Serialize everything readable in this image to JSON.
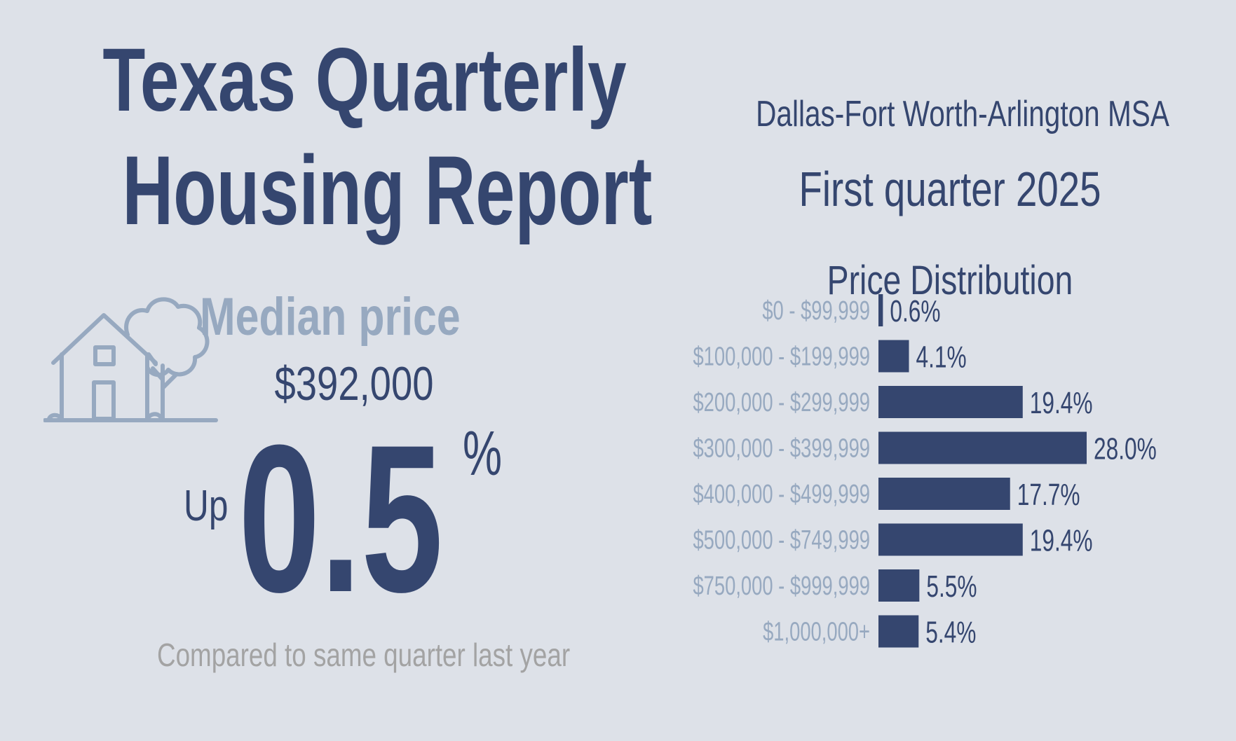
{
  "header": {
    "title_line1": "Texas Quarterly",
    "title_line2": "Housing Report",
    "region": "Dallas-Fort Worth-Arlington MSA",
    "period": "First quarter 2025"
  },
  "median": {
    "label": "Median price",
    "value": "$392,000",
    "direction": "Up",
    "change": "0.5",
    "unit": "%",
    "comparison": "Compared to same quarter last year",
    "icon": "house-with-tree-icon"
  },
  "colors": {
    "primary": "#35466f",
    "muted": "#97a9c0",
    "gray": "#a3a3a3",
    "background": "#dde1e8"
  },
  "chart_data": {
    "type": "bar",
    "orientation": "horizontal",
    "title": "Price Distribution",
    "categories": [
      "$0 - $99,999",
      "$100,000 - $199,999",
      "$200,000 - $299,999",
      "$300,000 - $399,999",
      "$400,000 - $499,999",
      "$500,000 - $749,999",
      "$750,000 - $999,999",
      "$1,000,000+"
    ],
    "values": [
      0.6,
      4.1,
      19.4,
      28.0,
      17.7,
      19.4,
      5.5,
      5.4
    ],
    "value_labels": [
      "0.6%",
      "4.1%",
      "19.4%",
      "28.0%",
      "17.7%",
      "19.4%",
      "5.5%",
      "5.4%"
    ],
    "xlim": [
      0,
      28.0
    ],
    "grid": false,
    "legend": "none"
  }
}
